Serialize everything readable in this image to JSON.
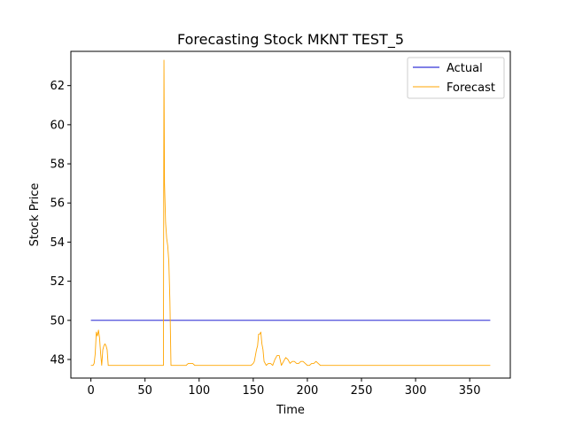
{
  "chart_data": {
    "type": "line",
    "title": "Forecasting Stock MKNT TEST_5",
    "xlabel": "Time",
    "ylabel": "Stock Price",
    "xlim": [
      -18.5,
      387.5
    ],
    "ylim": [
      47.05,
      63.75
    ],
    "xticks": [
      0,
      50,
      100,
      150,
      200,
      250,
      300,
      350
    ],
    "yticks": [
      48,
      50,
      52,
      54,
      56,
      58,
      60,
      62
    ],
    "grid": false,
    "legend_position": "top-right",
    "series": [
      {
        "name": "Actual",
        "color": "#0000cc",
        "x": [
          0,
          369
        ],
        "y": [
          50.0,
          50.0
        ]
      },
      {
        "name": "Forecast",
        "color": "#ffa500",
        "x": [
          0,
          1,
          2,
          3,
          4,
          5,
          6,
          7,
          8,
          9,
          10,
          11,
          12,
          13,
          14,
          15,
          16,
          17,
          18,
          20,
          30,
          40,
          50,
          60,
          65,
          66,
          67,
          67.5,
          68,
          69,
          70,
          71,
          72,
          73,
          74,
          75,
          80,
          85,
          88,
          90,
          92,
          94,
          96,
          100,
          110,
          120,
          130,
          140,
          148,
          150,
          151,
          152,
          153,
          154,
          155,
          156,
          157,
          158,
          159,
          160,
          162,
          164,
          166,
          168,
          170,
          172,
          174,
          176,
          178,
          180,
          182,
          184,
          186,
          188,
          190,
          192,
          194,
          196,
          198,
          200,
          202,
          204,
          206,
          208,
          210,
          212,
          214,
          216,
          220,
          225,
          230,
          240,
          250,
          260,
          268,
          270,
          272,
          275,
          280,
          290,
          300,
          320,
          340,
          360,
          369
        ],
        "y": [
          47.7,
          47.7,
          47.7,
          47.8,
          48.3,
          49.4,
          49.2,
          49.5,
          49.1,
          48.3,
          47.7,
          48.5,
          48.7,
          48.8,
          48.7,
          48.5,
          47.7,
          47.7,
          47.7,
          47.7,
          47.7,
          47.7,
          47.7,
          47.7,
          47.7,
          47.7,
          47.7,
          63.3,
          57.0,
          55.0,
          54.2,
          53.8,
          53.0,
          51.0,
          47.7,
          47.7,
          47.7,
          47.7,
          47.7,
          47.8,
          47.8,
          47.8,
          47.7,
          47.7,
          47.7,
          47.7,
          47.7,
          47.7,
          47.7,
          47.8,
          47.9,
          48.2,
          48.5,
          48.7,
          49.3,
          49.3,
          49.4,
          48.8,
          48.5,
          47.9,
          47.7,
          47.8,
          47.8,
          47.7,
          48.0,
          48.2,
          48.2,
          47.7,
          47.9,
          48.1,
          48.0,
          47.8,
          47.9,
          47.9,
          47.8,
          47.8,
          47.9,
          47.9,
          47.8,
          47.7,
          47.7,
          47.8,
          47.8,
          47.9,
          47.8,
          47.7,
          47.7,
          47.7,
          47.7,
          47.7,
          47.7,
          47.7,
          47.7,
          47.7,
          47.7,
          47.7,
          47.7,
          47.7,
          47.7,
          47.7,
          47.7,
          47.7,
          47.7,
          47.7,
          47.7
        ]
      }
    ]
  }
}
